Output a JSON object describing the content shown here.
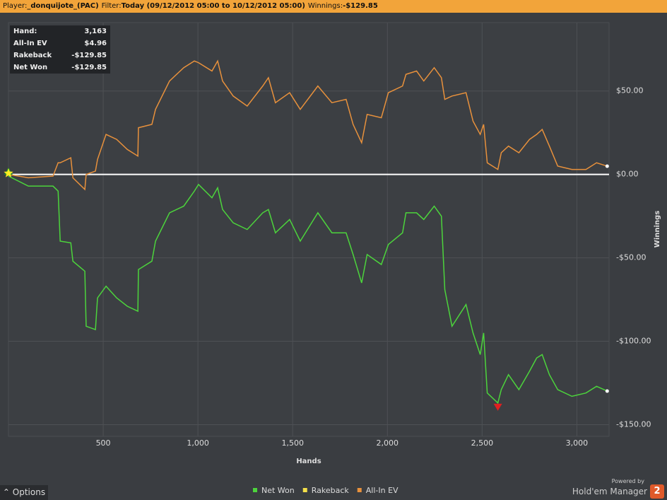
{
  "header": {
    "player_label": "Player:",
    "player": "_donquijote_(PAC)",
    "filter_label": "Filter:",
    "filter": "Today (09/12/2012 05:00 to 10/12/2012 05:00)",
    "winnings_label": "Winnings:",
    "winnings": "-$129.85"
  },
  "stats": [
    [
      "Hand:",
      "3,163"
    ],
    [
      "All-In EV",
      "$4.96"
    ],
    [
      "Rakeback",
      "-$129.85"
    ],
    [
      "Net Won",
      "-$129.85"
    ]
  ],
  "options": "Options",
  "brand": {
    "powered": "Powered by",
    "name": "Hold'em Manager",
    "version": "2"
  },
  "chart_data": {
    "type": "line",
    "x_label": "Hands",
    "y_label": "Winnings",
    "x": [
      0,
      105,
      235,
      262,
      273,
      329,
      340,
      403,
      410,
      459,
      470,
      515,
      571,
      627,
      683,
      686,
      757,
      776,
      850,
      925,
      981,
      1003,
      1074,
      1104,
      1130,
      1186,
      1260,
      1342,
      1372,
      1409,
      1484,
      1540,
      1633,
      1707,
      1782,
      1819,
      1864,
      1893,
      1968,
      2005,
      2080,
      2098,
      2154,
      2192,
      2247,
      2285,
      2303,
      2341,
      2415,
      2452,
      2490,
      2508,
      2527,
      2583,
      2601,
      2639,
      2694,
      2750,
      2788,
      2817,
      2855,
      2899,
      2974,
      3048,
      3104,
      3160
    ],
    "series": [
      {
        "name": "Net Won",
        "color": "#4cd43c",
        "values": [
          -1,
          -7,
          -7,
          -10,
          -40,
          -41,
          -52,
          -58,
          -91,
          -93,
          -74,
          -67,
          -74,
          -79,
          -82,
          -57,
          -52,
          -40,
          -23,
          -19,
          -10,
          -6,
          -14,
          -8,
          -21,
          -29,
          -33,
          -23,
          -21,
          -35,
          -27,
          -40,
          -23,
          -35,
          -35,
          -48,
          -65,
          -48,
          -54,
          -42,
          -35,
          -23,
          -23,
          -27,
          -19,
          -25,
          -69,
          -91,
          -78,
          -95,
          -108,
          -95,
          -131,
          -137,
          -129,
          -120,
          -129,
          -118,
          -110,
          -108,
          -120,
          -129,
          -133,
          -131,
          -127,
          -129.85
        ]
      },
      {
        "name": "Rakeback",
        "color": "#f4e04a",
        "values": [
          null,
          null,
          null,
          null,
          null,
          null,
          null,
          null,
          null,
          null,
          null,
          null,
          null,
          null,
          null,
          null,
          null,
          null,
          null,
          null,
          null,
          null,
          null,
          null,
          null,
          null,
          null,
          null,
          null,
          null,
          null,
          null,
          null,
          null,
          null,
          null,
          null,
          null,
          null,
          null,
          null,
          null,
          null,
          null,
          null,
          null,
          null,
          null,
          null,
          null,
          null,
          null,
          null,
          null,
          null,
          null,
          null,
          null,
          null,
          null,
          null,
          null,
          null,
          null,
          null,
          null
        ]
      },
      {
        "name": "All-In EV",
        "color": "#e8913c",
        "values": [
          0,
          -2,
          -1,
          7,
          7,
          10,
          -2,
          -9,
          0,
          2,
          9,
          24,
          21,
          15,
          11,
          28,
          30,
          39,
          56,
          64,
          68,
          67,
          62,
          68,
          56,
          47,
          41,
          53,
          58,
          43,
          49,
          39,
          53,
          43,
          45,
          30,
          19,
          36,
          34,
          49,
          53,
          60,
          62,
          56,
          64,
          58,
          45,
          47,
          49,
          32,
          24,
          30,
          7,
          3,
          13,
          17,
          13,
          21,
          24,
          27,
          17,
          5,
          3,
          3,
          7,
          4.96
        ]
      }
    ],
    "xlim": [
      0,
      3170
    ],
    "xticks": [
      {
        "value": 500,
        "label": "500"
      },
      {
        "value": 1000,
        "label": "1,000"
      },
      {
        "value": 1500,
        "label": "1,500"
      },
      {
        "value": 2000,
        "label": "2,000"
      },
      {
        "value": 2500,
        "label": "2,500"
      },
      {
        "value": 3000,
        "label": "3,000"
      }
    ],
    "ylim": [
      -157,
      91
    ],
    "yticks": [
      {
        "value": -150,
        "label": "-$150.00"
      },
      {
        "value": -100,
        "label": "-$100.00"
      },
      {
        "value": -50,
        "label": "-$50.00"
      },
      {
        "value": 0,
        "label": "$0.00"
      },
      {
        "value": 50,
        "label": "$50.00"
      }
    ],
    "grid": true
  }
}
